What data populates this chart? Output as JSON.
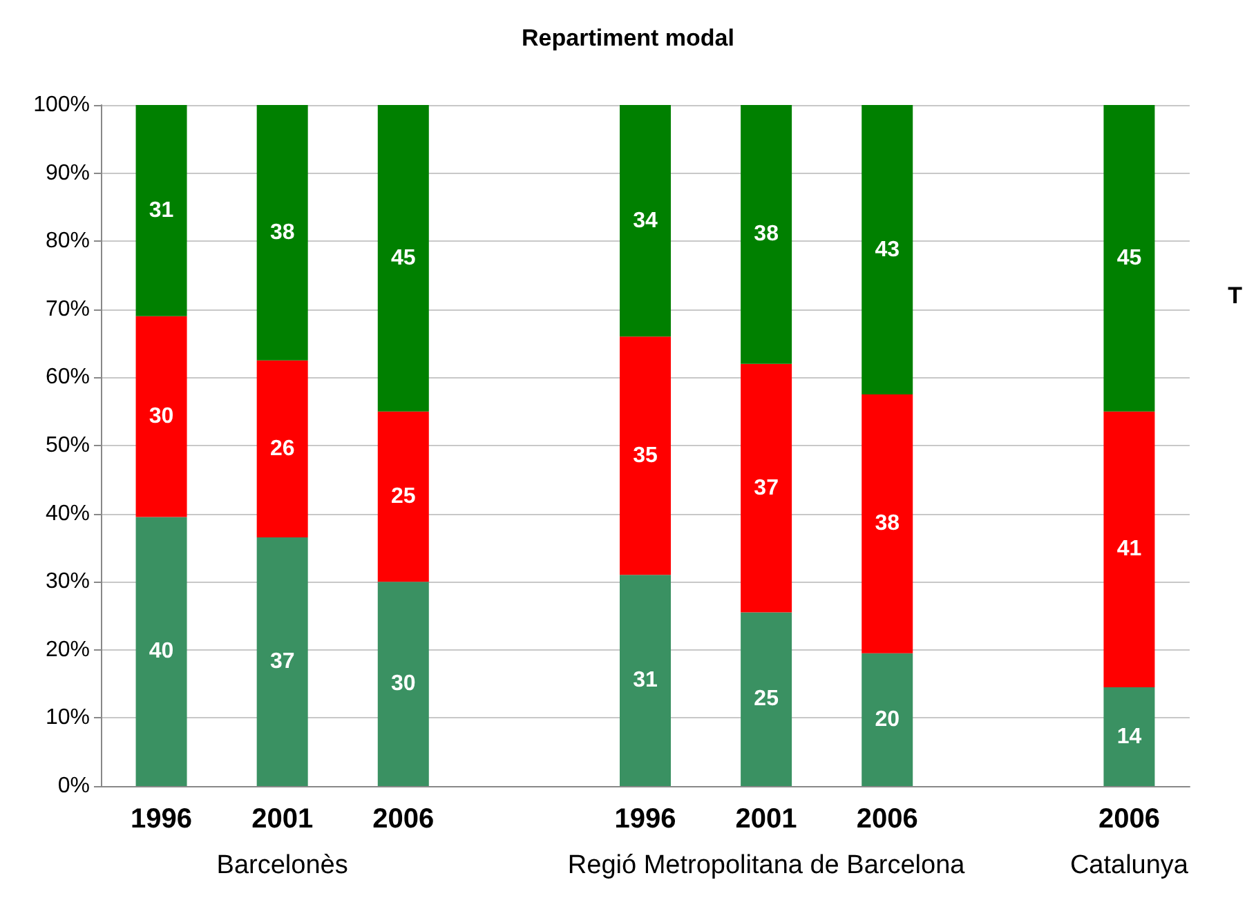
{
  "chart_data": {
    "type": "bar",
    "title": "Repartiment modal",
    "stacked": true,
    "categories": [
      "1996",
      "2001",
      "2006",
      null,
      "1996",
      "2001",
      "2006",
      null,
      "2006"
    ],
    "series": [
      {
        "color": "#3a9162",
        "values": [
          39.5,
          36.5,
          30,
          null,
          31,
          25.5,
          19.5,
          null,
          14.5
        ],
        "value_labels": [
          "40",
          "37",
          "30",
          null,
          "31",
          "25",
          "20",
          null,
          "14"
        ]
      },
      {
        "color": "#ff0000",
        "values": [
          29.5,
          26,
          25,
          null,
          35,
          36.5,
          38,
          null,
          40.5
        ],
        "value_labels": [
          "30",
          "26",
          "25",
          null,
          "35",
          "37",
          "38",
          null,
          "41"
        ]
      },
      {
        "color": "#008000",
        "values": [
          31,
          37.5,
          45,
          null,
          34,
          38,
          42.5,
          null,
          45
        ],
        "value_labels": [
          "31",
          "38",
          "45",
          null,
          "34",
          "38",
          "43",
          null,
          "45"
        ]
      }
    ],
    "ylim": [
      0,
      100
    ],
    "yticks": [
      {
        "value": 0,
        "label": "0%"
      },
      {
        "value": 10,
        "label": "10%"
      },
      {
        "value": 20,
        "label": "20%"
      },
      {
        "value": 30,
        "label": "30%"
      },
      {
        "value": 40,
        "label": "40%"
      },
      {
        "value": 50,
        "label": "50%"
      },
      {
        "value": 60,
        "label": "60%"
      },
      {
        "value": 70,
        "label": "70%"
      },
      {
        "value": 80,
        "label": "80%"
      },
      {
        "value": 90,
        "label": "90%"
      },
      {
        "value": 100,
        "label": "100%"
      }
    ],
    "grid": "y",
    "annotations": [
      "Barcelonès",
      "Regió Metropolitana de Barcelona",
      "Catalunya",
      "T"
    ]
  }
}
